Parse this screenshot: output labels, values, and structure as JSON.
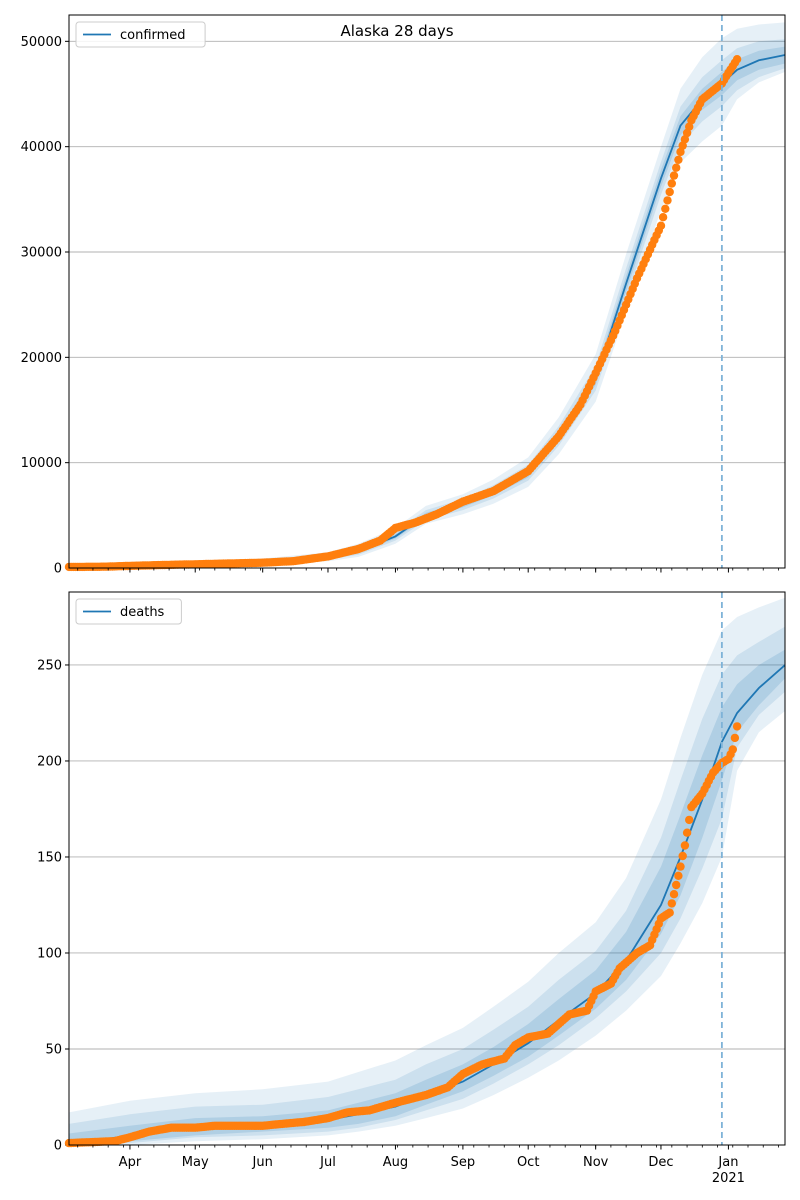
{
  "title": "Alaska 28 days",
  "chart_data": [
    {
      "type": "line",
      "panel": "top",
      "legend": [
        "confirmed"
      ],
      "legend_placement": "top-left",
      "grid": "y-major",
      "ylim": [
        0,
        52500
      ],
      "yticks": [
        0,
        10000,
        20000,
        30000,
        40000,
        50000
      ],
      "x_start": "2020-03-04",
      "x_end": "2021-01-27",
      "forecast_start": "2020-12-29",
      "series": [
        {
          "name": "confirmed",
          "kind": "model-median",
          "x": [
            "2020-03-04",
            "2020-04-01",
            "2020-05-01",
            "2020-06-01",
            "2020-07-01",
            "2020-07-15",
            "2020-08-01",
            "2020-08-15",
            "2020-09-01",
            "2020-09-15",
            "2020-10-01",
            "2020-10-15",
            "2020-11-01",
            "2020-11-15",
            "2020-12-01",
            "2020-12-10",
            "2020-12-20",
            "2020-12-29",
            "2021-01-05",
            "2021-01-15",
            "2021-01-27"
          ],
          "y": [
            0,
            150,
            300,
            450,
            1000,
            1600,
            3000,
            5000,
            6000,
            7200,
            9000,
            12500,
            18000,
            27000,
            37000,
            42000,
            44500,
            46000,
            47300,
            48200,
            48700
          ]
        },
        {
          "name": "observed",
          "kind": "points",
          "x": [
            "2020-03-04",
            "2020-03-20",
            "2020-04-01",
            "2020-04-15",
            "2020-05-01",
            "2020-05-15",
            "2020-06-01",
            "2020-06-15",
            "2020-07-01",
            "2020-07-15",
            "2020-07-25",
            "2020-08-01",
            "2020-08-10",
            "2020-08-20",
            "2020-09-01",
            "2020-09-15",
            "2020-10-01",
            "2020-10-15",
            "2020-10-25",
            "2020-11-01",
            "2020-11-10",
            "2020-11-20",
            "2020-12-01",
            "2020-12-06",
            "2020-12-10",
            "2020-12-15",
            "2020-12-20",
            "2020-12-29",
            "2021-01-01",
            "2021-01-05"
          ],
          "y": [
            100,
            120,
            200,
            280,
            350,
            420,
            500,
            650,
            1100,
            1800,
            2600,
            3800,
            4300,
            5100,
            6300,
            7300,
            9200,
            12500,
            15500,
            18500,
            22500,
            27500,
            32500,
            36500,
            39500,
            42500,
            44500,
            46000,
            47000,
            48300
          ]
        }
      ],
      "bands": [
        {
          "level": "outer",
          "upper": [
            200,
            400,
            600,
            900,
            1500,
            2300,
            3800,
            5900,
            7000,
            8400,
            10500,
            14300,
            20300,
            29800,
            40000,
            45500,
            48500,
            50300,
            51200,
            51600,
            51800
          ],
          "lower": [
            0,
            50,
            150,
            250,
            650,
            1050,
            2300,
            4200,
            5100,
            6100,
            7700,
            10800,
            15800,
            24300,
            34000,
            38500,
            40500,
            42000,
            44500,
            46100,
            47100
          ]
        },
        {
          "level": "middle",
          "upper": [
            130,
            290,
            470,
            700,
            1300,
            2000,
            3450,
            5500,
            6550,
            7850,
            9800,
            13450,
            19200,
            28450,
            38550,
            43800,
            46600,
            48200,
            49350,
            50000,
            50200
          ],
          "lower": [
            0,
            90,
            200,
            320,
            800,
            1250,
            2600,
            4550,
            5500,
            6600,
            8300,
            11600,
            16850,
            25550,
            35450,
            40200,
            42400,
            43850,
            45350,
            46600,
            47450
          ]
        },
        {
          "level": "inner",
          "upper": [
            60,
            210,
            380,
            580,
            1150,
            1800,
            3200,
            5250,
            6250,
            7500,
            9400,
            12950,
            18600,
            27750,
            37800,
            42900,
            45500,
            47100,
            48300,
            49100,
            49500
          ],
          "lower": [
            0,
            110,
            230,
            370,
            870,
            1400,
            2800,
            4750,
            5750,
            6900,
            8600,
            12050,
            17400,
            26250,
            36200,
            41100,
            43500,
            44900,
            46300,
            47300,
            47900
          ]
        }
      ]
    },
    {
      "type": "line",
      "panel": "bottom",
      "legend": [
        "deaths"
      ],
      "legend_placement": "top-left",
      "grid": "y-major",
      "ylim": [
        0,
        288
      ],
      "yticks": [
        0,
        50,
        100,
        150,
        200,
        250
      ],
      "xtick_labels": [
        "Apr",
        "May",
        "Jun",
        "Jul",
        "Aug",
        "Sep",
        "Oct",
        "Nov",
        "Dec",
        "Jan"
      ],
      "xtick_dates": [
        "2020-04-01",
        "2020-05-01",
        "2020-06-01",
        "2020-07-01",
        "2020-08-01",
        "2020-09-01",
        "2020-10-01",
        "2020-11-01",
        "2020-12-01",
        "2021-01-01"
      ],
      "year_label": "2021",
      "x_start": "2020-03-04",
      "x_end": "2021-01-27",
      "forecast_start": "2020-12-29",
      "series": [
        {
          "name": "deaths",
          "kind": "model-median",
          "x": [
            "2020-03-04",
            "2020-04-01",
            "2020-05-01",
            "2020-06-01",
            "2020-07-01",
            "2020-07-15",
            "2020-08-01",
            "2020-08-15",
            "2020-09-01",
            "2020-09-15",
            "2020-10-01",
            "2020-10-15",
            "2020-11-01",
            "2020-11-15",
            "2020-12-01",
            "2020-12-10",
            "2020-12-20",
            "2020-12-29",
            "2021-01-05",
            "2021-01-15",
            "2021-01-27"
          ],
          "y": [
            0,
            5,
            9,
            10,
            13,
            16,
            20,
            26,
            33,
            42,
            53,
            65,
            79,
            96,
            125,
            150,
            180,
            210,
            225,
            238,
            250
          ]
        },
        {
          "name": "observed",
          "kind": "points",
          "x": [
            "2020-03-04",
            "2020-03-25",
            "2020-04-01",
            "2020-04-10",
            "2020-04-20",
            "2020-05-01",
            "2020-05-10",
            "2020-06-01",
            "2020-06-10",
            "2020-06-20",
            "2020-07-01",
            "2020-07-10",
            "2020-07-20",
            "2020-08-01",
            "2020-08-15",
            "2020-08-25",
            "2020-09-01",
            "2020-09-10",
            "2020-09-20",
            "2020-09-25",
            "2020-10-01",
            "2020-10-10",
            "2020-10-20",
            "2020-10-28",
            "2020-11-01",
            "2020-11-08",
            "2020-11-12",
            "2020-11-20",
            "2020-11-26",
            "2020-12-01",
            "2020-12-05",
            "2020-12-10",
            "2020-12-12",
            "2020-12-15",
            "2020-12-20",
            "2020-12-25",
            "2020-12-29",
            "2021-01-01",
            "2021-01-03",
            "2021-01-05"
          ],
          "y": [
            1,
            2,
            4,
            7,
            9,
            9,
            10,
            10,
            11,
            12,
            14,
            17,
            18,
            22,
            26,
            30,
            37,
            42,
            45,
            52,
            56,
            58,
            68,
            70,
            80,
            84,
            92,
            100,
            104,
            118,
            121,
            145,
            156,
            176,
            183,
            194,
            199,
            201,
            206,
            218
          ]
        }
      ],
      "bands": [
        {
          "level": "outer",
          "upper": [
            17,
            23,
            27,
            29,
            33,
            38,
            44,
            52,
            61,
            72,
            85,
            100,
            116,
            139,
            180,
            212,
            245,
            268,
            275,
            280,
            285
          ],
          "lower": [
            0,
            0,
            2,
            3,
            5,
            7,
            10,
            14,
            19,
            26,
            35,
            44,
            57,
            70,
            88,
            105,
            126,
            150,
            195,
            215,
            226
          ]
        },
        {
          "level": "middle",
          "upper": [
            11,
            16,
            20,
            21,
            25,
            29,
            34,
            42,
            50,
            60,
            72,
            86,
            101,
            122,
            160,
            190,
            222,
            245,
            255,
            262,
            270
          ],
          "lower": [
            0,
            1,
            4,
            5,
            7,
            9,
            13,
            18,
            24,
            32,
            42,
            52,
            66,
            80,
            100,
            118,
            144,
            170,
            207,
            224,
            236
          ]
        },
        {
          "level": "inner",
          "upper": [
            6,
            10,
            14,
            15,
            18,
            22,
            27,
            34,
            42,
            51,
            63,
            76,
            91,
            111,
            145,
            172,
            203,
            228,
            240,
            250,
            258
          ],
          "lower": [
            0,
            2,
            5,
            7,
            9,
            11,
            15,
            21,
            28,
            36,
            46,
            57,
            71,
            86,
            110,
            130,
            160,
            190,
            215,
            229,
            243
          ]
        }
      ]
    }
  ],
  "colors": {
    "median_line": "#1f77b4",
    "points": "#ff7f0e",
    "band": "#1f77b4",
    "forecast_line": "#7fb3d8",
    "grid": "#b0b0b0"
  }
}
